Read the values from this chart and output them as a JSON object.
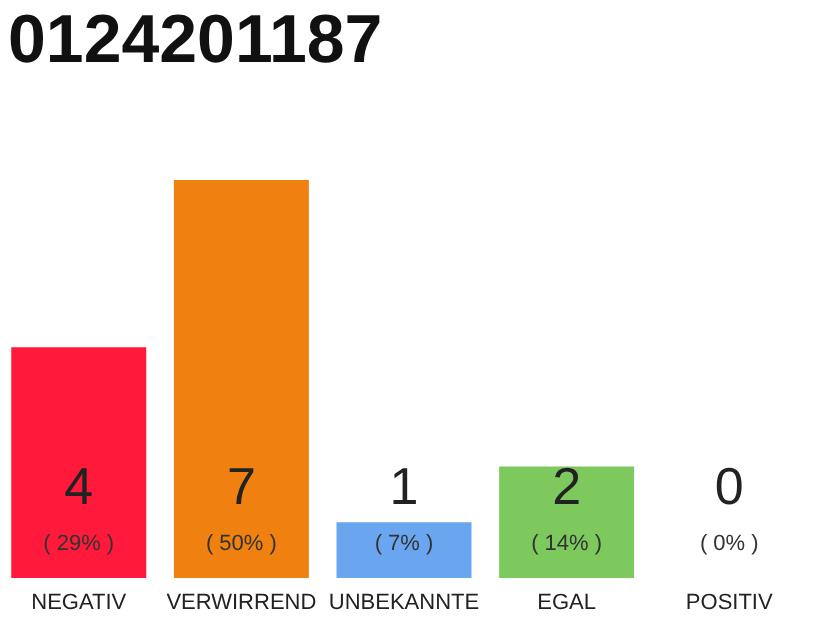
{
  "chart_data": {
    "type": "bar",
    "title": "0124201187",
    "categories": [
      "NEGATIV",
      "VERWIRREND",
      "UNBEKANNTE",
      "EGAL",
      "POSITIV"
    ],
    "values": [
      29,
      50,
      7,
      14,
      0
    ],
    "colors": [
      "#ff1a3c",
      "#f08010",
      "#6aa6f0",
      "#7dc95e",
      "#cccccc"
    ],
    "value_labels": [
      "( 29% )",
      "( 50% )",
      "( 7% )",
      "( 14% )",
      "( 0% )"
    ],
    "annotations": [
      {
        "text": "4",
        "x": "NEGATIV",
        "y": 0
      },
      {
        "text": "7",
        "x": "VERWIRREND",
        "y": 0
      },
      {
        "text": "1",
        "x": "UNBEKANNTE",
        "y": 0
      },
      {
        "text": "2",
        "x": "EGAL",
        "y": 0
      },
      {
        "text": "0",
        "x": "POSITIV",
        "y": 0
      }
    ]
  }
}
